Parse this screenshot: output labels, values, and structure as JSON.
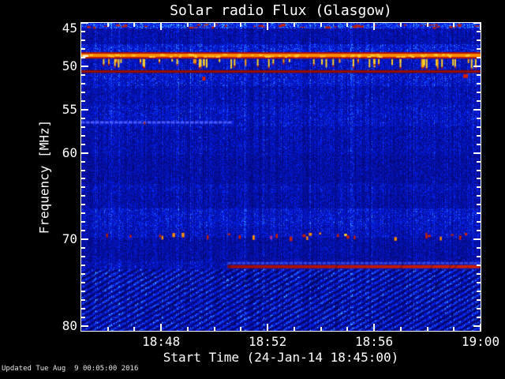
{
  "footer": {
    "updated": "Updated Tue Aug  9 00:05:00 2016"
  },
  "chart_data": {
    "type": "heatmap",
    "subtype": "radio-spectrogram",
    "title": "Solar radio Flux (Glasgow)",
    "xlabel": "Start Time (24-Jan-14 18:45:00)",
    "ylabel": "Frequency [MHz]",
    "grid": false,
    "x_axis": {
      "start_time": "18:45:00",
      "end_time": "19:00:00",
      "minutes_span": 15,
      "minor_tick_every_minutes": 1,
      "major_ticks": [
        {
          "minute": 3,
          "label": "18:48"
        },
        {
          "minute": 7,
          "label": "18:52"
        },
        {
          "minute": 11,
          "label": "18:56"
        },
        {
          "minute": 15,
          "label": "19:00"
        }
      ]
    },
    "y_axis": {
      "min_mhz": 45,
      "max_mhz": 80.5,
      "inverted": true,
      "minor_tick_every_mhz": 1,
      "major_ticks": [
        {
          "mhz": 45,
          "label": "45"
        },
        {
          "mhz": 50,
          "label": "50"
        },
        {
          "mhz": 55,
          "label": "55"
        },
        {
          "mhz": 60,
          "label": "60"
        },
        {
          "mhz": 70,
          "label": "70"
        },
        {
          "mhz": 80,
          "label": "80"
        }
      ]
    },
    "background_bands": [
      {
        "f0": 45.0,
        "f1": 45.62,
        "level": 1.55
      },
      {
        "f0": 45.62,
        "f1": 47.5,
        "level": 0.8
      },
      {
        "f0": 47.5,
        "f1": 48.4,
        "level": 1.18
      },
      {
        "f0": 48.4,
        "f1": 49.1,
        "level": 0.95
      },
      {
        "f0": 49.1,
        "f1": 50.4,
        "level": 0.95
      },
      {
        "f0": 50.4,
        "f1": 52.3,
        "level": 1.08
      },
      {
        "f0": 52.3,
        "f1": 54.4,
        "level": 0.86
      },
      {
        "f0": 54.4,
        "f1": 56.9,
        "level": 0.96
      },
      {
        "f0": 56.9,
        "f1": 60.2,
        "level": 0.82
      },
      {
        "f0": 60.2,
        "f1": 63.6,
        "level": 0.73
      },
      {
        "f0": 63.6,
        "f1": 64.6,
        "level": 0.86
      },
      {
        "f0": 64.6,
        "f1": 66.4,
        "level": 0.78
      },
      {
        "f0": 66.4,
        "f1": 68.4,
        "level": 1.03
      },
      {
        "f0": 68.4,
        "f1": 69.8,
        "level": 0.93
      },
      {
        "f0": 69.8,
        "f1": 72.5,
        "level": 0.73
      },
      {
        "f0": 72.5,
        "f1": 73.4,
        "level": 0.9
      },
      {
        "f0": 73.4,
        "f1": 80.6,
        "level": 1.18
      }
    ],
    "features": [
      {
        "type": "dash_row",
        "name": "calibration-red-dashes",
        "f0": 45.12,
        "f1": 45.5,
        "count": 46,
        "color": "#c81e00"
      },
      {
        "type": "solid_band",
        "name": "orange-emission-band",
        "f0": 48.38,
        "f1": 49.12,
        "edge_color": "#b41200",
        "core_color": "#ff8c00",
        "glint_color": "#ffc832",
        "glint_count": 80
      },
      {
        "type": "vdash_row",
        "name": "rfi-bursts",
        "f0": 49.18,
        "f1": 50.35,
        "count": 56,
        "color": "#ffd028",
        "alt_color": "#ff9a00",
        "tip_color": "#c82000"
      },
      {
        "type": "solid_line",
        "name": "red-line-50.6MHz",
        "f0": 50.45,
        "f1": 50.78,
        "color": "#a81000",
        "edge": "#6e0a00"
      },
      {
        "type": "partial_line",
        "name": "faint-blue-line-56.5MHz",
        "f0": 56.35,
        "f1": 56.62,
        "t0": 0,
        "t1": 5.62,
        "color": "#4a5aff"
      },
      {
        "type": "point",
        "name": "red-speck-56.5MHz",
        "t": 2.35,
        "f": 56.45,
        "w": 2,
        "h": 3,
        "color": "#c02000"
      },
      {
        "type": "speck_row",
        "name": "speck-row-69.5MHz",
        "f0": 69.2,
        "f1": 69.75,
        "count": 30,
        "colors": [
          "#c81e00",
          "#ff8c00",
          "#ffd028",
          "#a22aa2"
        ]
      },
      {
        "type": "partial_line",
        "name": "blue-line-72.8MHz",
        "f0": 72.6,
        "f1": 72.86,
        "t0": 5.5,
        "t1": 15,
        "color": "#3646e0"
      },
      {
        "type": "partial_line",
        "name": "red-line-73.1MHz",
        "f0": 72.95,
        "f1": 73.32,
        "t0": 5.5,
        "t1": 15,
        "color": "#a00c00",
        "end_color": "#d42000"
      },
      {
        "type": "point",
        "name": "red-spot-18:49.6",
        "t": 4.55,
        "f": 51.2,
        "w": 4,
        "h": 5,
        "color": "#d41e00"
      },
      {
        "type": "point",
        "name": "red-spot-18:59.4",
        "t": 14.35,
        "f": 50.9,
        "w": 6,
        "h": 5,
        "color": "#d41e00"
      },
      {
        "type": "point",
        "name": "white-hot-pixel-left",
        "t": 0.05,
        "f": 48.72,
        "w": 7,
        "h": 2,
        "color": "#ffffff"
      },
      {
        "type": "diag_texture",
        "name": "bottom-plasma-streaks",
        "f0": 73.4,
        "f1": 80.6,
        "strokes": 150
      }
    ],
    "palette": {
      "background": "#000000",
      "deep_blue": "#000070",
      "base_blue": "#0000c8",
      "bright_blue": "#2a3cff",
      "orange": "#ff8c00",
      "yellow": "#ffd028",
      "red": "#b51000",
      "dark_red": "#7a0800",
      "magenta": "#a22aa2",
      "axis": "#ffffff"
    }
  }
}
